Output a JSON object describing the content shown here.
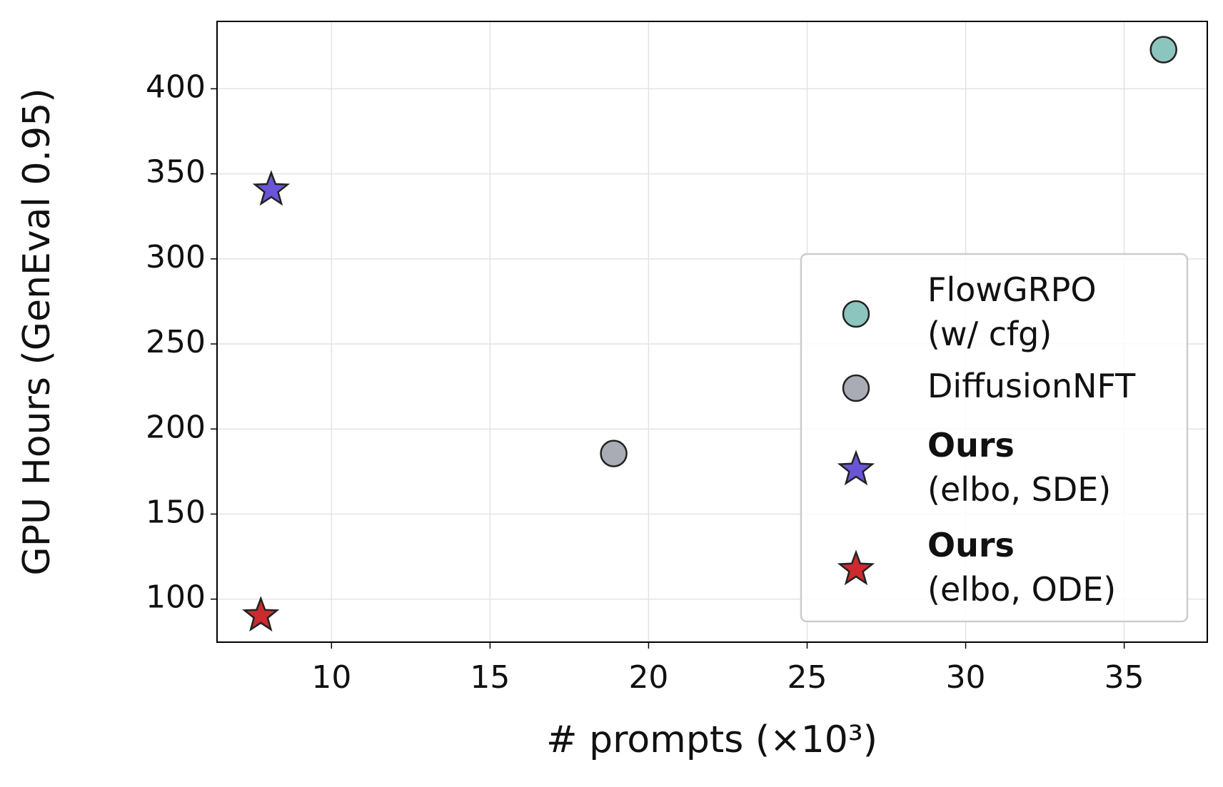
{
  "chart_data": {
    "type": "scatter",
    "xlabel": "# prompts (×10³)",
    "ylabel": "GPU Hours (GenEval 0.95)",
    "xlim": [
      6.39,
      37.62
    ],
    "ylim": [
      74.7,
      439.6
    ],
    "xticks": [
      10,
      15,
      20,
      25,
      30,
      35
    ],
    "yticks": [
      100,
      150,
      200,
      250,
      300,
      350,
      400
    ],
    "grid": true,
    "legend": "lower right",
    "series": [
      {
        "name": "FlowGRPO\n(w/ cfg)",
        "color": "#8cc5bd",
        "marker": "circle",
        "bold_first_line": false,
        "x": [
          36.24
        ],
        "values": [
          423
        ]
      },
      {
        "name": "DiffusionNFT",
        "color": "#a9acb4",
        "marker": "circle",
        "bold_first_line": false,
        "x": [
          18.9
        ],
        "values": [
          185.6
        ]
      },
      {
        "name": "Ours\n(elbo, SDE)",
        "color": "#6a55d6",
        "marker": "star",
        "bold_first_line": true,
        "x": [
          8.1
        ],
        "values": [
          340.6
        ]
      },
      {
        "name": "Ours\n(elbo, ODE)",
        "color": "#cc2a2e",
        "marker": "star",
        "bold_first_line": true,
        "x": [
          7.77
        ],
        "values": [
          90.3
        ]
      }
    ]
  }
}
